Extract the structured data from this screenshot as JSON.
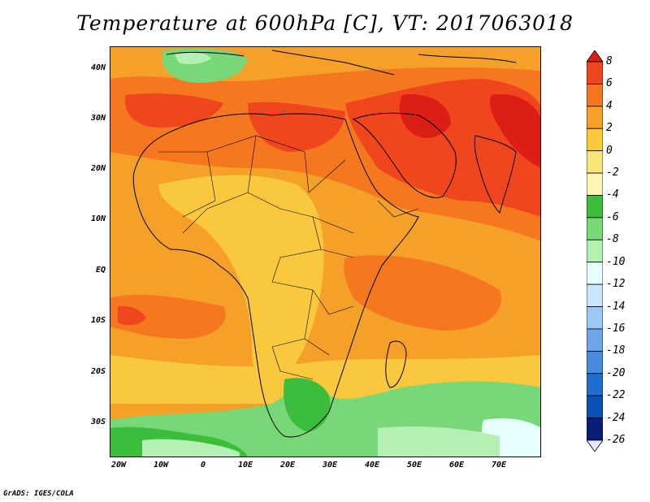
{
  "title": "Temperature at 600hPa [C], VT: 2017063018",
  "credit": "GrADS: IGES/COLA",
  "y_ticks": [
    "40N",
    "30N",
    "20N",
    "10N",
    "EQ",
    "10S",
    "20S",
    "30S"
  ],
  "x_ticks": [
    "20W",
    "10W",
    "0",
    "10E",
    "20E",
    "30E",
    "40E",
    "50E",
    "60E",
    "70E"
  ],
  "colorbar": {
    "labels": [
      "8",
      "6",
      "4",
      "2",
      "0",
      "-2",
      "-4",
      "-6",
      "-8",
      "-10",
      "-12",
      "-14",
      "-16",
      "-18",
      "-20",
      "-22",
      "-24",
      "-26"
    ],
    "colors": [
      "#dc1e14",
      "#f0461e",
      "#f5781e",
      "#f5a028",
      "#fac83c",
      "#fae678",
      "#fff5b4",
      "#3cbe3c",
      "#78d878",
      "#b4f0b4",
      "#e6ffff",
      "#c8e6ff",
      "#9cc8f5",
      "#6ea5eb",
      "#468ce1",
      "#1e6ed2",
      "#0a50b4",
      "#0a1e78",
      "#e6e6ff"
    ]
  },
  "colors": {
    "orange": "#f5a028",
    "light_orange": "#fac83c",
    "dark_orange": "#f5781e",
    "red_orange": "#f0461e",
    "green": "#3cbe3c",
    "light_green": "#78d878",
    "pale_green": "#b4f0b4",
    "pale_blue": "#e6ffff"
  }
}
